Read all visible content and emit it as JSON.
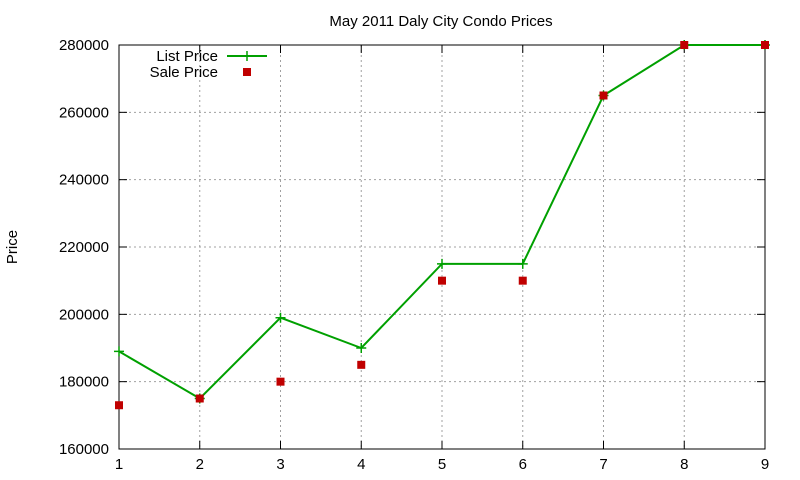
{
  "chart_data": {
    "type": "line",
    "title": "May 2011 Daly City Condo Prices",
    "xlabel": "",
    "ylabel": "Price",
    "xlim": [
      1,
      9
    ],
    "ylim": [
      160000,
      280000
    ],
    "x_ticks": [
      1,
      2,
      3,
      4,
      5,
      6,
      7,
      8,
      9
    ],
    "y_ticks": [
      160000,
      180000,
      200000,
      220000,
      240000,
      260000,
      280000
    ],
    "grid": true,
    "legend_position": "top-left",
    "series": [
      {
        "name": "List Price",
        "style": "line-with-plus-markers",
        "color": "#00a000",
        "x": [
          1,
          2,
          3,
          4,
          5,
          6,
          7,
          8,
          9
        ],
        "y": [
          189000,
          175000,
          199000,
          190000,
          215000,
          215000,
          265000,
          280000,
          280000
        ]
      },
      {
        "name": "Sale Price",
        "style": "square-points",
        "color": "#c00000",
        "x": [
          1,
          2,
          3,
          4,
          5,
          6,
          7,
          8,
          9
        ],
        "y": [
          173000,
          175000,
          180000,
          185000,
          210000,
          210000,
          265000,
          280000,
          280000
        ]
      }
    ]
  }
}
